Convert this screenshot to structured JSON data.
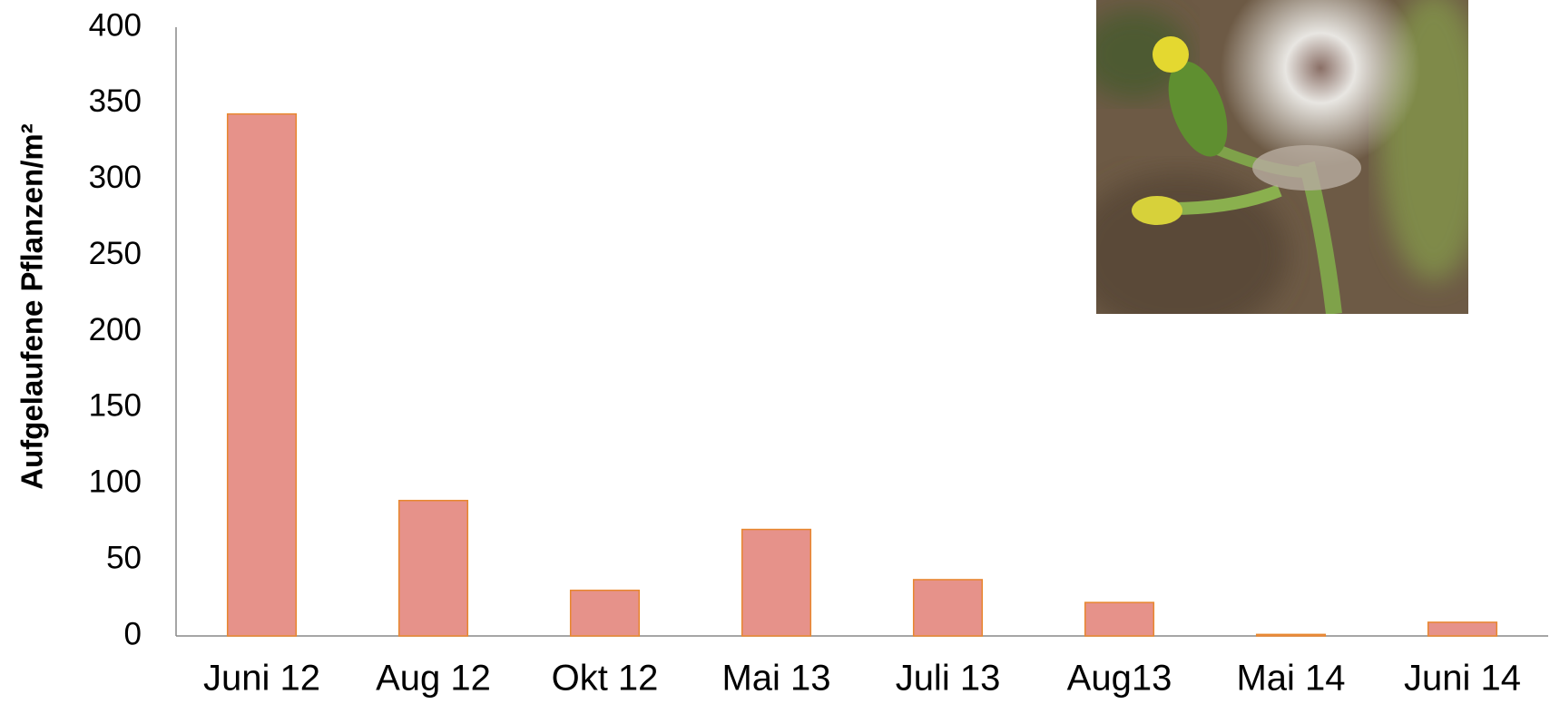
{
  "chart_data": {
    "type": "bar",
    "y_label": "Aufgelaufene Pflanzen/m²",
    "categories": [
      "Juni 12",
      "Aug 12",
      "Okt 12",
      "Mai 13",
      "Juli 13",
      "Aug13",
      "Mai 14",
      "Juni 14"
    ],
    "values": [
      343,
      89,
      30,
      70,
      37,
      22,
      1,
      9
    ],
    "color": "#e6928a",
    "edge_color": "#e8872e",
    "ylim": [
      0,
      400
    ],
    "yticks": [
      0,
      50,
      100,
      150,
      200,
      250,
      300,
      350,
      400
    ],
    "grid": false
  }
}
